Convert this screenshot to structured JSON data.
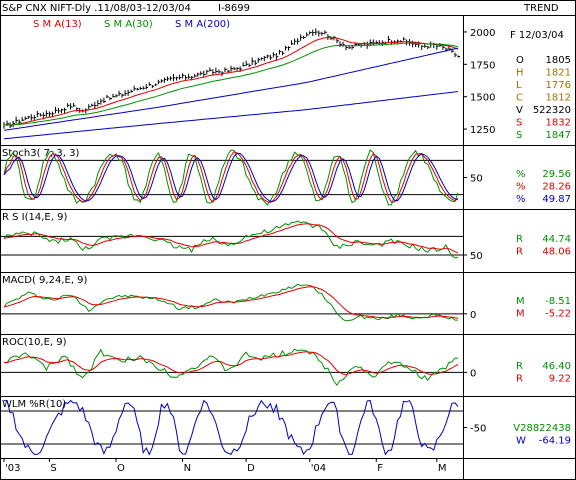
{
  "header": {
    "title": "S&P CNX NIFT-Dly .11/08/03-12/03/04",
    "id": "I-8699",
    "trend_label": "TREND"
  },
  "colors": {
    "price": "#000000",
    "sma13": "#e00000",
    "sma30": "#009000",
    "sma200": "#0000c0",
    "stoch_k": "#009000",
    "stoch_d": "#e00000",
    "stoch_s": "#0000c0",
    "rsi": "#009000",
    "rsi_signal": "#e00000",
    "macd": "#009000",
    "macd_signal": "#e00000",
    "roc": "#009000",
    "roc_signal": "#e00000",
    "wlm": "#0000c0",
    "grid": "#000000"
  },
  "chart_data": [
    {
      "type": "line",
      "name": "price",
      "legend": [
        "S M A(13)",
        "S M A(30)",
        "S M A(200)"
      ],
      "ylim": [
        1150,
        2100
      ],
      "yticks": [
        "2000",
        "1750",
        "1500",
        "1250"
      ],
      "ytick_values": [
        2000,
        1750,
        1500,
        1250
      ],
      "x_months": [
        "'03",
        "S",
        "O",
        "N",
        "D",
        "'04",
        "F",
        "M"
      ],
      "x_month_index": [
        0,
        15,
        37,
        59,
        80,
        101,
        123,
        143
      ],
      "close_anchors": [
        [
          0,
          1270
        ],
        [
          8,
          1340
        ],
        [
          16,
          1380
        ],
        [
          22,
          1430
        ],
        [
          26,
          1390
        ],
        [
          32,
          1470
        ],
        [
          38,
          1510
        ],
        [
          44,
          1560
        ],
        [
          50,
          1600
        ],
        [
          56,
          1640
        ],
        [
          62,
          1660
        ],
        [
          68,
          1690
        ],
        [
          74,
          1700
        ],
        [
          80,
          1740
        ],
        [
          86,
          1800
        ],
        [
          90,
          1820
        ],
        [
          94,
          1880
        ],
        [
          98,
          1960
        ],
        [
          102,
          2010
        ],
        [
          106,
          1990
        ],
        [
          110,
          1930
        ],
        [
          114,
          1880
        ],
        [
          118,
          1900
        ],
        [
          122,
          1910
        ],
        [
          126,
          1930
        ],
        [
          130,
          1940
        ],
        [
          134,
          1920
        ],
        [
          138,
          1890
        ],
        [
          142,
          1900
        ],
        [
          146,
          1870
        ],
        [
          150,
          1812
        ]
      ],
      "sma200_anchors": [
        [
          0,
          1240
        ],
        [
          50,
          1415
        ],
        [
          100,
          1610
        ],
        [
          150,
          1875
        ]
      ],
      "sma200_lower_anchors": [
        [
          0,
          1175
        ],
        [
          50,
          1290
        ],
        [
          100,
          1400
        ],
        [
          150,
          1540
        ]
      ],
      "info": {
        "date": "F 12/03/04",
        "rows": [
          {
            "k": "O",
            "v": "1805",
            "color": "#000000"
          },
          {
            "k": "H",
            "v": "1821",
            "color": "#a07000"
          },
          {
            "k": "L",
            "v": "1776",
            "color": "#a07000"
          },
          {
            "k": "C",
            "v": "1812",
            "color": "#a07000"
          },
          {
            "k": "V",
            "v": "522320",
            "color": "#000000"
          },
          {
            "k": "S",
            "v": "1832",
            "color": "#e00000"
          },
          {
            "k": "S",
            "v": "1847",
            "color": "#009000"
          }
        ]
      }
    },
    {
      "type": "line",
      "name": "stoch",
      "legend": [
        "Stoch3( 7, 3, 3)"
      ],
      "ylim": [
        0,
        100
      ],
      "yticks": [
        "50"
      ],
      "ytick_values": [
        50
      ],
      "hlines": [
        80,
        20
      ],
      "readouts": [
        {
          "k": "%",
          "v": "29.56",
          "color": "#009000"
        },
        {
          "k": "%",
          "v": "28.26",
          "color": "#e00000"
        },
        {
          "k": "%",
          "v": "49.87",
          "color": "#0000c0"
        }
      ]
    },
    {
      "type": "line",
      "name": "rsi",
      "legend": [
        "R S I(14,E, 9)"
      ],
      "ylim": [
        35,
        95
      ],
      "yticks": [
        "50"
      ],
      "ytick_values": [
        50
      ],
      "hlines": [
        70,
        50
      ],
      "anchors": [
        [
          0,
          70
        ],
        [
          10,
          73
        ],
        [
          16,
          64
        ],
        [
          22,
          68
        ],
        [
          26,
          55
        ],
        [
          32,
          66
        ],
        [
          38,
          69
        ],
        [
          44,
          72
        ],
        [
          50,
          68
        ],
        [
          56,
          60
        ],
        [
          62,
          56
        ],
        [
          68,
          68
        ],
        [
          74,
          60
        ],
        [
          80,
          70
        ],
        [
          86,
          74
        ],
        [
          92,
          80
        ],
        [
          98,
          86
        ],
        [
          104,
          80
        ],
        [
          110,
          58
        ],
        [
          116,
          64
        ],
        [
          122,
          60
        ],
        [
          128,
          64
        ],
        [
          134,
          60
        ],
        [
          140,
          54
        ],
        [
          146,
          58
        ],
        [
          150,
          45
        ]
      ],
      "readouts": [
        {
          "k": "R",
          "v": "44.74",
          "color": "#009000"
        },
        {
          "k": "R",
          "v": "48.06",
          "color": "#e00000"
        }
      ]
    },
    {
      "type": "line",
      "name": "macd",
      "legend": [
        "MACD( 9,24,E, 9)"
      ],
      "ylim": [
        -25,
        55
      ],
      "yticks": [
        "0"
      ],
      "ytick_values": [
        0
      ],
      "hlines": [
        0
      ],
      "anchors": [
        [
          0,
          12
        ],
        [
          8,
          30
        ],
        [
          16,
          20
        ],
        [
          22,
          28
        ],
        [
          28,
          6
        ],
        [
          34,
          22
        ],
        [
          40,
          26
        ],
        [
          46,
          24
        ],
        [
          52,
          20
        ],
        [
          58,
          8
        ],
        [
          64,
          10
        ],
        [
          70,
          20
        ],
        [
          76,
          16
        ],
        [
          82,
          24
        ],
        [
          88,
          30
        ],
        [
          94,
          38
        ],
        [
          100,
          44
        ],
        [
          106,
          24
        ],
        [
          112,
          -10
        ],
        [
          118,
          -4
        ],
        [
          124,
          -8
        ],
        [
          130,
          -2
        ],
        [
          136,
          -6
        ],
        [
          142,
          -2
        ],
        [
          146,
          -6
        ],
        [
          150,
          -8.5
        ]
      ],
      "readouts": [
        {
          "k": "M",
          "v": "-8.51",
          "color": "#009000"
        },
        {
          "k": "M",
          "v": "-5.22",
          "color": "#e00000"
        }
      ]
    },
    {
      "type": "line",
      "name": "roc",
      "legend": [
        "ROC(10,E, 9)"
      ],
      "ylim": [
        -60,
        100
      ],
      "yticks": [
        "0"
      ],
      "ytick_values": [
        0
      ],
      "hlines": [
        0
      ],
      "anchors": [
        [
          0,
          30
        ],
        [
          8,
          55
        ],
        [
          14,
          10
        ],
        [
          20,
          50
        ],
        [
          26,
          -20
        ],
        [
          32,
          60
        ],
        [
          38,
          30
        ],
        [
          44,
          45
        ],
        [
          50,
          20
        ],
        [
          56,
          -10
        ],
        [
          62,
          10
        ],
        [
          68,
          45
        ],
        [
          74,
          5
        ],
        [
          80,
          50
        ],
        [
          86,
          40
        ],
        [
          92,
          55
        ],
        [
          98,
          70
        ],
        [
          104,
          40
        ],
        [
          110,
          -30
        ],
        [
          116,
          20
        ],
        [
          122,
          -10
        ],
        [
          128,
          30
        ],
        [
          134,
          10
        ],
        [
          140,
          -20
        ],
        [
          146,
          15
        ],
        [
          150,
          46
        ]
      ],
      "readouts": [
        {
          "k": "R",
          "v": "46.40",
          "color": "#009000"
        },
        {
          "k": "R",
          "v": "9.22",
          "color": "#e00000"
        }
      ]
    },
    {
      "type": "line",
      "name": "wlm",
      "legend": [
        "WLM %R(10)"
      ],
      "ylim": [
        -100,
        0
      ],
      "yticks": [
        "-50"
      ],
      "ytick_values": [
        -50
      ],
      "hlines": [
        -20,
        -80
      ],
      "readouts": [
        {
          "k": "",
          "v": "V28822438",
          "color": "#009000"
        },
        {
          "k": "W",
          "v": "-64.19",
          "color": "#0000c0"
        }
      ]
    }
  ]
}
